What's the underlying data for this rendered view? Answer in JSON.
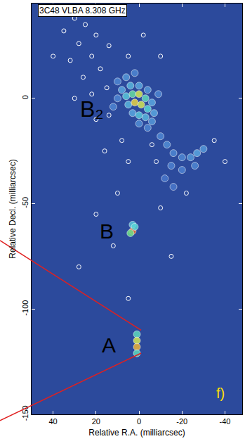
{
  "chart_data": {
    "type": "image",
    "title": "3C48 VLBA 8.308 GHz",
    "x_label": "Relative R.A. (milliarcsec)",
    "y_label": "Relative Decl. (milliarcsec)",
    "xlim": [
      50,
      -48
    ],
    "ylim": [
      -150,
      45
    ],
    "xticks": [
      40,
      20,
      0,
      -20,
      -40
    ],
    "yticks": [
      -150,
      -100,
      -50,
      0
    ],
    "zlim": [
      0,
      1
    ],
    "emission": {
      "x": [
        10,
        6,
        2,
        8,
        4,
        0,
        -4,
        10,
        6,
        3,
        0,
        -3,
        -6,
        5,
        2,
        -1,
        -4,
        -7,
        3,
        0,
        -3,
        -6,
        0,
        -4,
        12,
        -9,
        -10,
        -13,
        -16,
        -20,
        -24,
        -27,
        -30,
        -26,
        -20,
        -15,
        -12,
        -16,
        3,
        3,
        4,
        2,
        1,
        1,
        1,
        1
      ],
      "y": [
        8,
        10,
        12,
        4,
        6,
        6,
        4,
        0,
        1,
        2,
        2,
        0,
        -2,
        -3,
        -2,
        -3,
        -5,
        -7,
        -7,
        -8,
        -9,
        -11,
        -12,
        -14,
        -4,
        2,
        -18,
        -22,
        -26,
        -28,
        -28,
        -26,
        -24,
        -32,
        -34,
        -32,
        -38,
        -42,
        -60,
        -63,
        -64,
        -61,
        -112,
        -115,
        -118,
        -121
      ],
      "values": [
        0.2,
        0.25,
        0.2,
        0.3,
        0.35,
        0.3,
        0.25,
        0.2,
        0.4,
        0.55,
        0.7,
        0.5,
        0.3,
        0.35,
        0.75,
        0.7,
        0.45,
        0.3,
        0.3,
        0.4,
        0.35,
        0.25,
        0.22,
        0.2,
        0.2,
        0.2,
        0.2,
        0.22,
        0.2,
        0.2,
        0.25,
        0.3,
        0.25,
        0.2,
        0.18,
        0.18,
        0.15,
        0.15,
        0.4,
        0.9,
        0.6,
        0.45,
        0.5,
        0.7,
        0.8,
        0.5
      ]
    },
    "contours": {
      "x": [
        30,
        25,
        35,
        20,
        28,
        14,
        22,
        32,
        18,
        26,
        15,
        22,
        30,
        14,
        20,
        8,
        16,
        5,
        -6,
        -8,
        -35,
        -40,
        -22,
        10,
        20,
        12,
        -15,
        28,
        5,
        -10,
        40,
        10,
        -2,
        -10,
        5
      ],
      "y": [
        38,
        35,
        32,
        30,
        26,
        25,
        20,
        18,
        14,
        10,
        5,
        2,
        0,
        -8,
        -10,
        -20,
        -25,
        -30,
        -22,
        -30,
        -20,
        -30,
        -45,
        -45,
        -55,
        -70,
        -75,
        -80,
        -95,
        -52,
        20,
        40,
        30,
        20,
        20
      ]
    },
    "annotations": [
      {
        "text": "B₂",
        "x": 22,
        "y": -5
      },
      {
        "text": "B",
        "x": 15,
        "y": -63
      },
      {
        "text": "A",
        "x": 14,
        "y": -117
      },
      {
        "text": "f)",
        "x": -38,
        "y": -140
      }
    ]
  }
}
